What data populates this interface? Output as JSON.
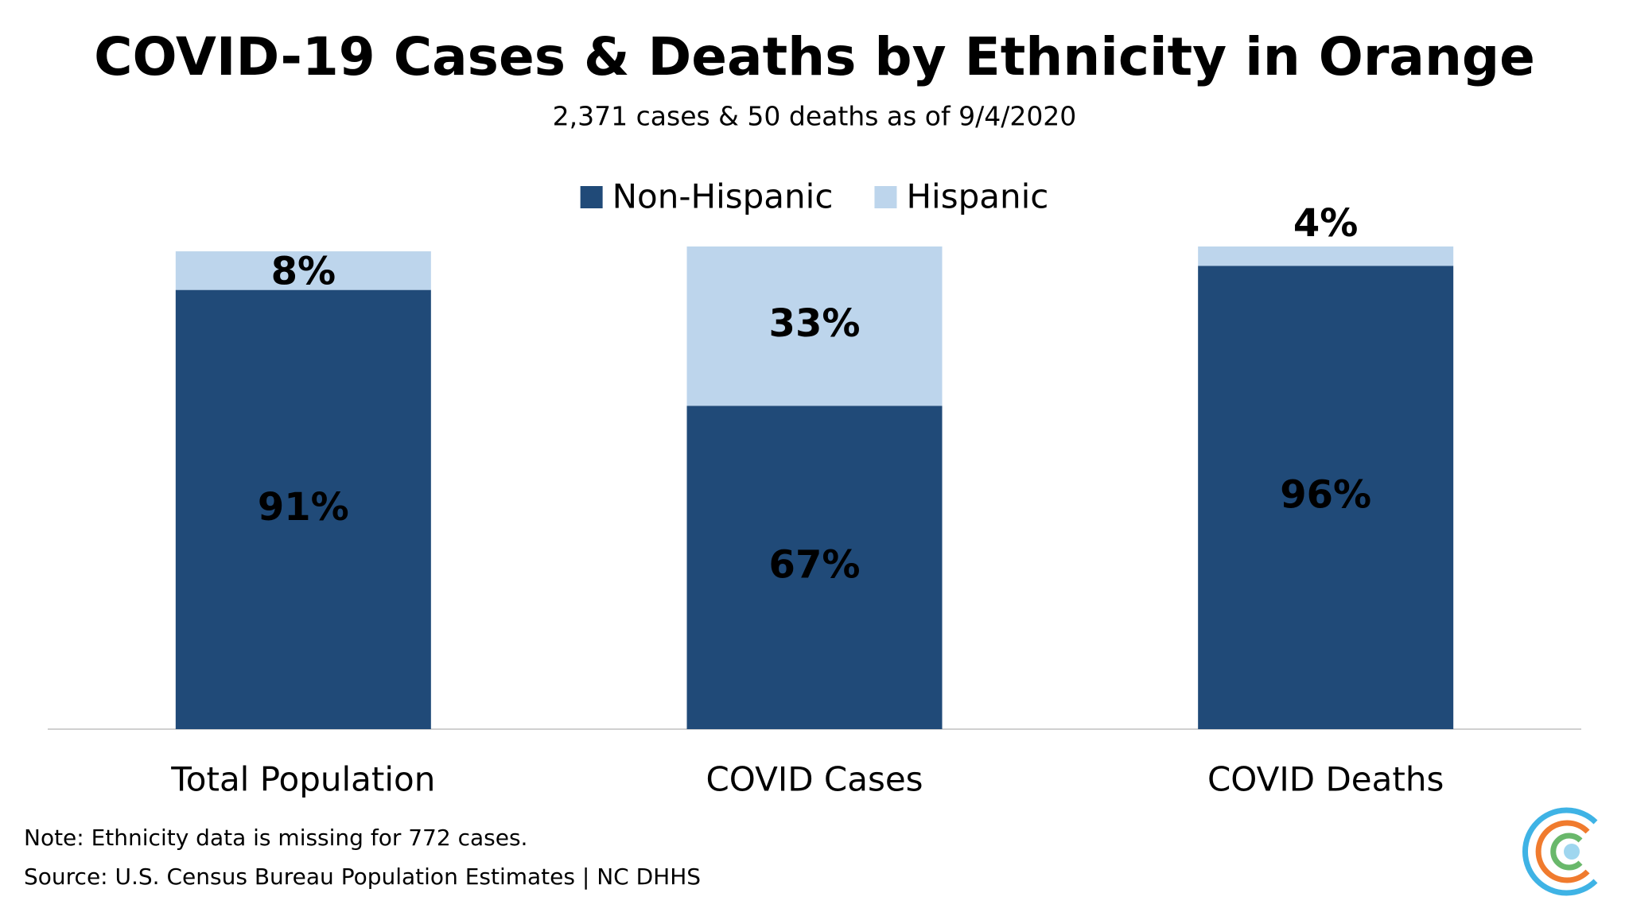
{
  "chart_data": {
    "type": "stacked_bar",
    "title": "COVID-19 Cases & Deaths by Ethnicity in Orange",
    "subtitle": "2,371 cases & 50 deaths as of 9/4/2020",
    "categories": [
      "Total Population",
      "COVID Cases",
      "COVID Deaths"
    ],
    "series": [
      {
        "name": "Non-Hispanic",
        "color": "#204a78",
        "values": [
          91,
          67,
          96
        ],
        "value_labels": [
          "91%",
          "67%",
          "96%"
        ]
      },
      {
        "name": "Hispanic",
        "color": "#bdd5ec",
        "values": [
          8,
          33,
          4
        ],
        "value_labels": [
          "8%",
          "33%",
          "4%"
        ]
      }
    ],
    "legend": "top",
    "notes": [
      "Note: Ethnicity data is missing for 772 cases.",
      "Source: U.S. Census Bureau Population Estimates | NC DHHS"
    ]
  }
}
